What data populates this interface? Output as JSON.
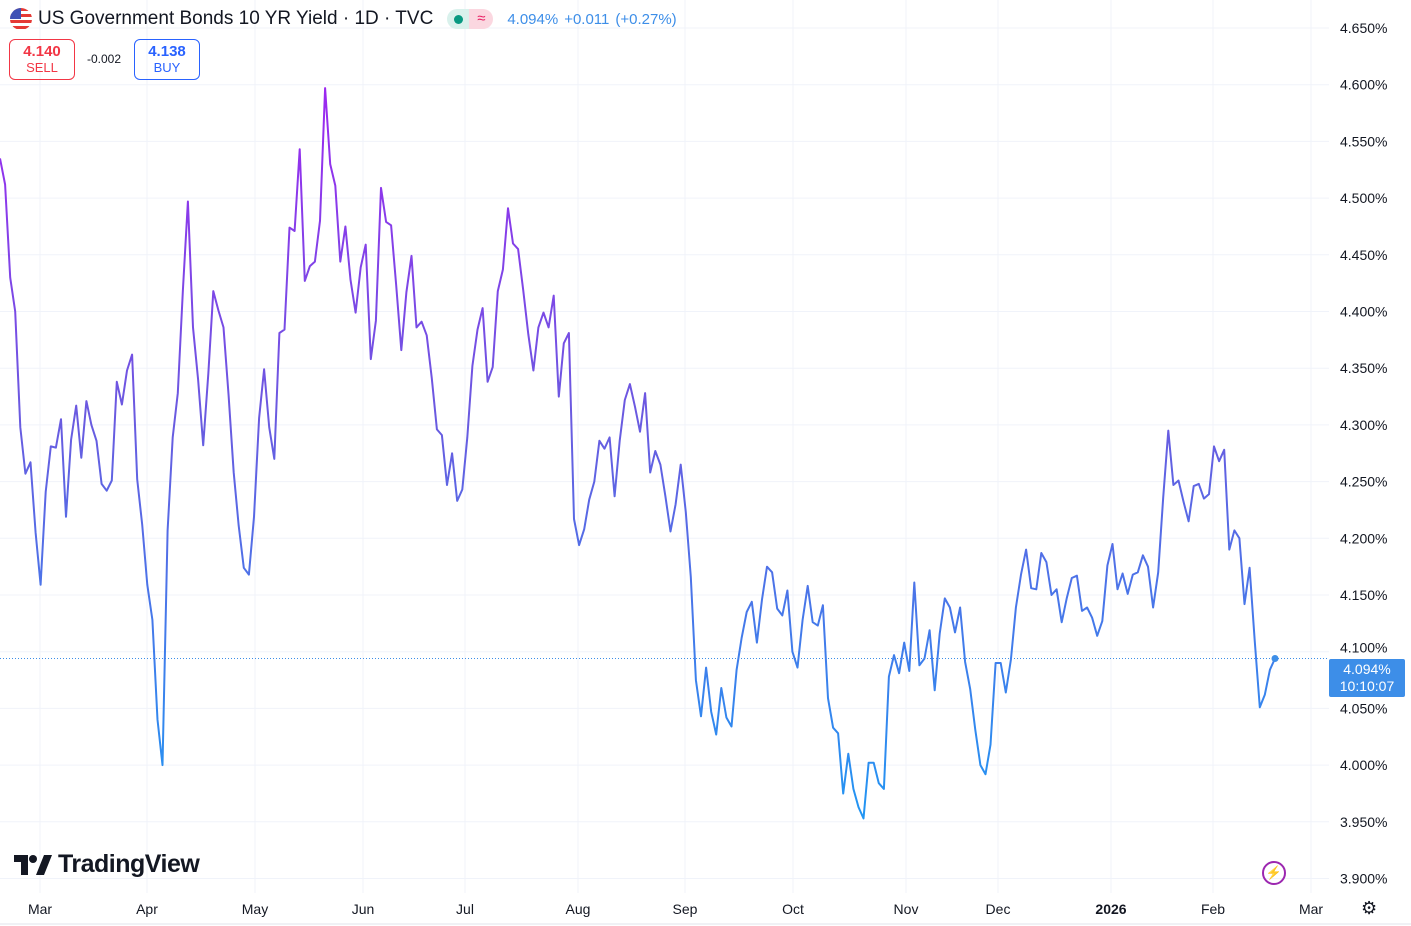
{
  "header": {
    "title": "US Government Bonds 10 YR Yield · 1D · TVC",
    "flag_icon": "us-flag-icon",
    "status_market_icon": "market-open-dot-icon",
    "status_delayed_icon": "approx-icon",
    "delayed_glyph": "≈",
    "last_price": "4.094%",
    "change": "+0.011",
    "change_pct": "(+0.27%)"
  },
  "trade": {
    "sell_price": "4.140",
    "sell_label": "SELL",
    "spread": "-0.002",
    "buy_price": "4.138",
    "buy_label": "BUY"
  },
  "last_label": {
    "price": "4.094%",
    "countdown": "10:10:07"
  },
  "branding": {
    "logo_text": "TradingView"
  },
  "colors": {
    "line_top": "#9c27f0",
    "line_mid": "#6a5ae0",
    "line_bottom": "#2196f3",
    "price_label": "#3d8ee8",
    "sell": "#f23645",
    "buy": "#2962ff"
  },
  "chart_data": {
    "type": "line",
    "title": "US Government Bonds 10 YR Yield · 1D · TVC",
    "x_tick_labels": [
      "Mar",
      "Apr",
      "May",
      "Jun",
      "Jul",
      "Aug",
      "Sep",
      "Oct",
      "Nov",
      "Dec",
      "2026",
      "Feb",
      "Mar"
    ],
    "y_tick_labels": [
      "4.650%",
      "4.600%",
      "4.550%",
      "4.500%",
      "4.450%",
      "4.400%",
      "4.350%",
      "4.300%",
      "4.250%",
      "4.200%",
      "4.150%",
      "4.100%",
      "4.050%",
      "4.000%",
      "3.950%",
      "3.900%"
    ],
    "ylim": [
      3.9,
      4.65
    ],
    "grid": true,
    "values": [
      4.535,
      4.512,
      4.43,
      4.4,
      4.298,
      4.257,
      4.267,
      4.205,
      4.159,
      4.241,
      4.281,
      4.28,
      4.305,
      4.219,
      4.287,
      4.317,
      4.271,
      4.321,
      4.3,
      4.286,
      4.248,
      4.242,
      4.251,
      4.338,
      4.318,
      4.348,
      4.362,
      4.252,
      4.212,
      4.159,
      4.128,
      4.04,
      4.0,
      4.207,
      4.289,
      4.328,
      4.419,
      4.497,
      4.386,
      4.34,
      4.282,
      4.345,
      4.418,
      4.401,
      4.386,
      4.326,
      4.258,
      4.211,
      4.174,
      4.168,
      4.219,
      4.306,
      4.349,
      4.298,
      4.27,
      4.381,
      4.384,
      4.474,
      4.471,
      4.543,
      4.427,
      4.44,
      4.444,
      4.48,
      4.597,
      4.53,
      4.511,
      4.444,
      4.475,
      4.428,
      4.399,
      4.439,
      4.459,
      4.358,
      4.392,
      4.509,
      4.479,
      4.476,
      4.423,
      4.366,
      4.417,
      4.449,
      4.386,
      4.391,
      4.379,
      4.341,
      4.296,
      4.291,
      4.247,
      4.275,
      4.233,
      4.243,
      4.289,
      4.352,
      4.384,
      4.403,
      4.338,
      4.351,
      4.418,
      4.437,
      4.491,
      4.46,
      4.455,
      4.419,
      4.38,
      4.348,
      4.386,
      4.399,
      4.386,
      4.414,
      4.325,
      4.372,
      4.381,
      4.217,
      4.194,
      4.208,
      4.234,
      4.25,
      4.286,
      4.279,
      4.289,
      4.237,
      4.286,
      4.322,
      4.336,
      4.316,
      4.294,
      4.328,
      4.258,
      4.277,
      4.265,
      4.237,
      4.206,
      4.23,
      4.265,
      4.223,
      4.166,
      4.075,
      4.043,
      4.086,
      4.047,
      4.027,
      4.068,
      4.042,
      4.034,
      4.084,
      4.112,
      4.135,
      4.144,
      4.108,
      4.146,
      4.175,
      4.17,
      4.138,
      4.132,
      4.154,
      4.1,
      4.086,
      4.128,
      4.158,
      4.126,
      4.123,
      4.141,
      4.059,
      4.033,
      4.028,
      3.975,
      4.01,
      3.979,
      3.963,
      3.953,
      4.002,
      4.002,
      3.984,
      3.979,
      4.078,
      4.097,
      4.081,
      4.108,
      4.083,
      4.161,
      4.088,
      4.094,
      4.119,
      4.066,
      4.116,
      4.147,
      4.139,
      4.117,
      4.139,
      4.091,
      4.067,
      4.031,
      4.0,
      3.992,
      4.018,
      4.09,
      4.09,
      4.064,
      4.093,
      4.139,
      4.168,
      4.19,
      4.156,
      4.155,
      4.187,
      4.179,
      4.15,
      4.155,
      4.126,
      4.147,
      4.165,
      4.167,
      4.136,
      4.139,
      4.13,
      4.114,
      4.127,
      4.176,
      4.195,
      4.155,
      4.169,
      4.151,
      4.168,
      4.17,
      4.185,
      4.175,
      4.139,
      4.17,
      4.236,
      4.295,
      4.247,
      4.251,
      4.232,
      4.215,
      4.246,
      4.248,
      4.235,
      4.239,
      4.281,
      4.268,
      4.278,
      4.19,
      4.207,
      4.2,
      4.142,
      4.174,
      4.11,
      4.051,
      4.062,
      4.084,
      4.094
    ],
    "last_value": 4.094
  }
}
